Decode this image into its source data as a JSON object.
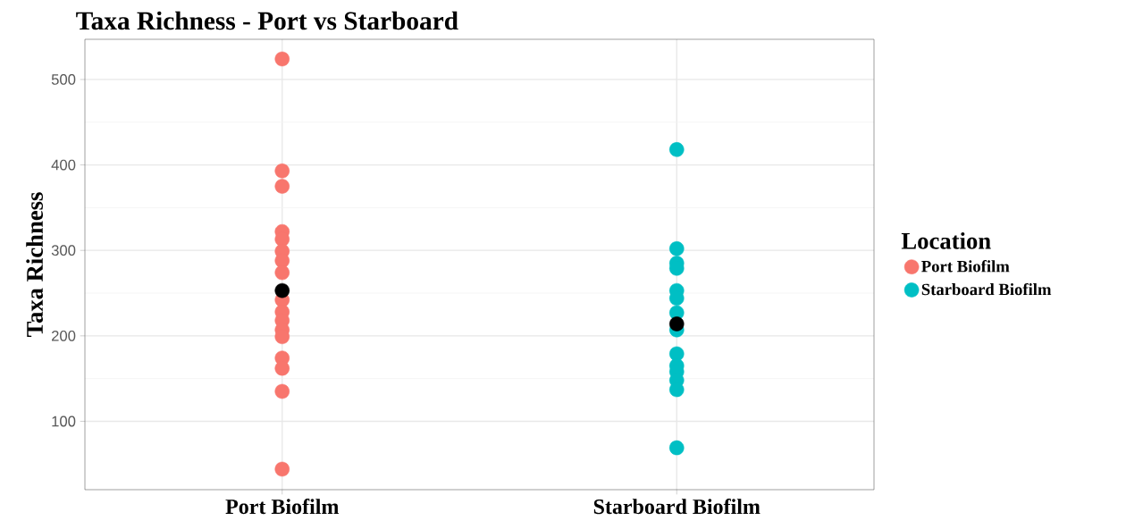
{
  "chart_data": {
    "type": "scatter",
    "title": "Taxa Richness - Port vs Starboard",
    "ylabel": "Taxa Richness",
    "legend_title": "Location",
    "categories": [
      "Port Biofilm",
      "Starboard Biofilm"
    ],
    "series": [
      {
        "name": "Port Biofilm",
        "color": "#f8766d",
        "x": [
          "Port Biofilm",
          "Port Biofilm",
          "Port Biofilm",
          "Port Biofilm",
          "Port Biofilm",
          "Port Biofilm",
          "Port Biofilm",
          "Port Biofilm",
          "Port Biofilm",
          "Port Biofilm",
          "Port Biofilm",
          "Port Biofilm",
          "Port Biofilm",
          "Port Biofilm",
          "Port Biofilm",
          "Port Biofilm",
          "Port Biofilm"
        ],
        "values": [
          524,
          393,
          375,
          322,
          313,
          299,
          288,
          274,
          242,
          228,
          218,
          207,
          199,
          174,
          162,
          135,
          44
        ]
      },
      {
        "name": "Starboard Biofilm",
        "color": "#00bfc4",
        "x": [
          "Starboard Biofilm",
          "Starboard Biofilm",
          "Starboard Biofilm",
          "Starboard Biofilm",
          "Starboard Biofilm",
          "Starboard Biofilm",
          "Starboard Biofilm",
          "Starboard Biofilm",
          "Starboard Biofilm",
          "Starboard Biofilm",
          "Starboard Biofilm",
          "Starboard Biofilm",
          "Starboard Biofilm",
          "Starboard Biofilm"
        ],
        "values": [
          418,
          302,
          285,
          279,
          253,
          244,
          227,
          207,
          179,
          165,
          158,
          148,
          137,
          69
        ]
      },
      {
        "color": "#000000",
        "x": [
          "Port Biofilm",
          "Starboard Biofilm"
        ],
        "values": [
          253,
          214
        ]
      }
    ],
    "ylim": [
      20,
      547
    ],
    "yticks": [
      100,
      200,
      300,
      400,
      500
    ],
    "grid": true,
    "legend": "right",
    "marker": "circle"
  }
}
